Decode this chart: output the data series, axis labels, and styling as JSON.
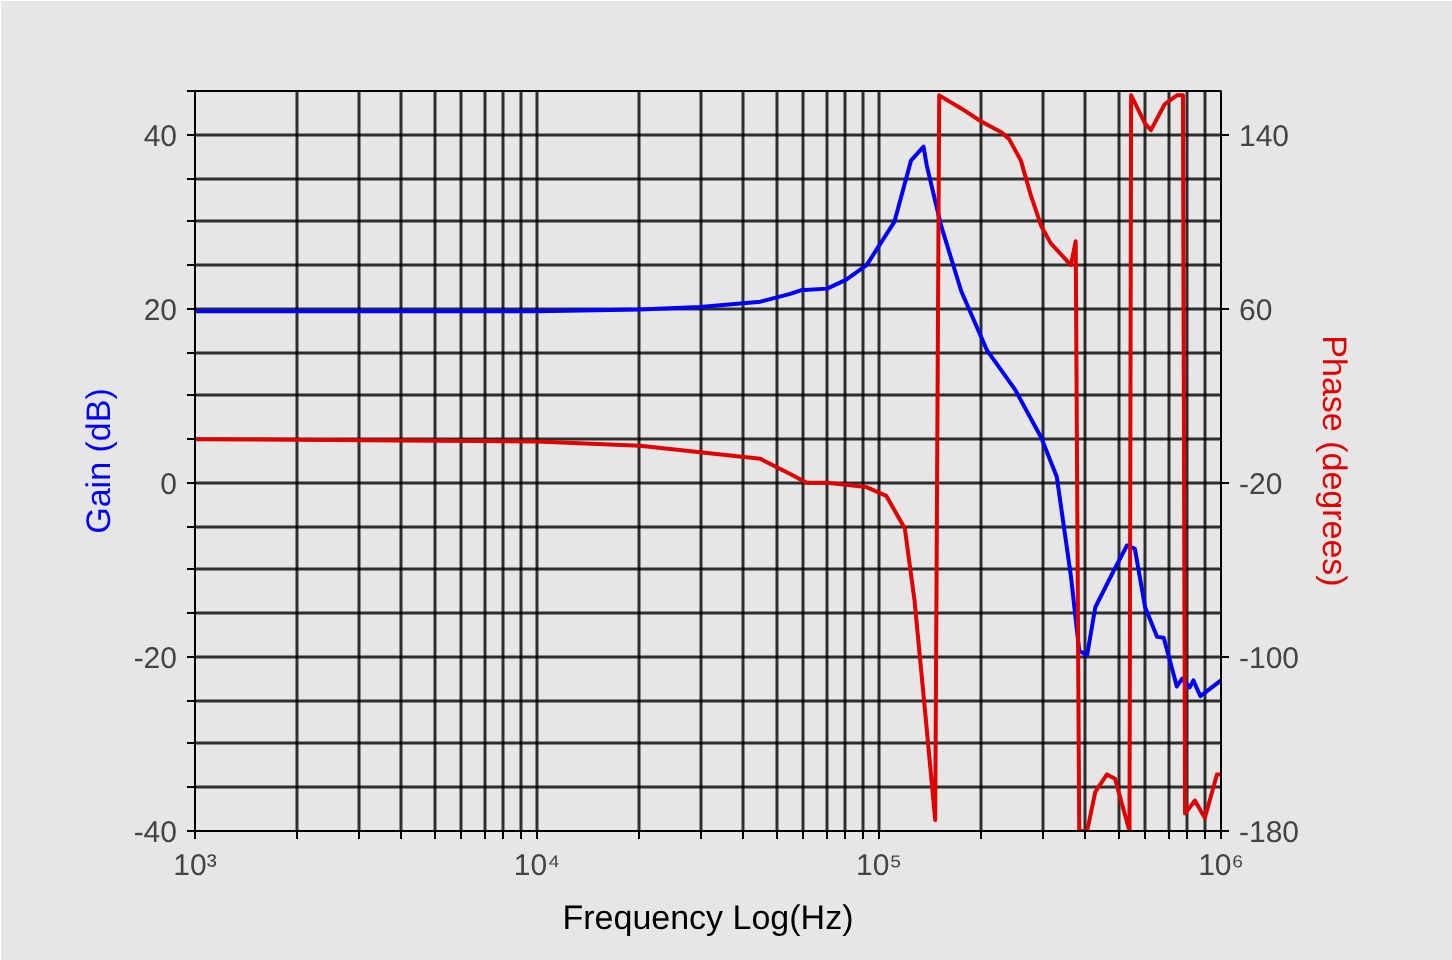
{
  "chart_data": {
    "type": "line",
    "xlabel": "Frequency Log(Hz)",
    "ylabel": "Gain (dB)",
    "y2label": "Phase (degrees)",
    "log": "x",
    "grid": true,
    "marker": "none",
    "line_style": "solid",
    "xlim": [
      1000,
      1000000
    ],
    "xticks": [
      {
        "value": 1000,
        "label": "10³"
      },
      {
        "value": 2000,
        "label": null
      },
      {
        "value": 3000,
        "label": null
      },
      {
        "value": 4000,
        "label": null
      },
      {
        "value": 5000,
        "label": null
      },
      {
        "value": 6000,
        "label": null
      },
      {
        "value": 7000,
        "label": null
      },
      {
        "value": 8000,
        "label": null
      },
      {
        "value": 9000,
        "label": null
      },
      {
        "value": 10000,
        "label": "10⁴"
      },
      {
        "value": 20000,
        "label": null
      },
      {
        "value": 30000,
        "label": null
      },
      {
        "value": 40000,
        "label": null
      },
      {
        "value": 50000,
        "label": null
      },
      {
        "value": 60000,
        "label": null
      },
      {
        "value": 70000,
        "label": null
      },
      {
        "value": 80000,
        "label": null
      },
      {
        "value": 90000,
        "label": null
      },
      {
        "value": 100000,
        "label": "10⁵"
      },
      {
        "value": 200000,
        "label": null
      },
      {
        "value": 300000,
        "label": null
      },
      {
        "value": 400000,
        "label": null
      },
      {
        "value": 500000,
        "label": null
      },
      {
        "value": 600000,
        "label": null
      },
      {
        "value": 700000,
        "label": null
      },
      {
        "value": 800000,
        "label": null
      },
      {
        "value": 900000,
        "label": null
      },
      {
        "value": 1000000,
        "label": "10⁶"
      }
    ],
    "ylim": [
      -40,
      45
    ],
    "yticks": [
      -40,
      {
        "value": -35,
        "label": null
      },
      {
        "value": -30,
        "label": null
      },
      {
        "value": -25,
        "label": null
      },
      -20,
      {
        "value": -15,
        "label": null
      },
      {
        "value": -10,
        "label": null
      },
      {
        "value": -5,
        "label": null
      },
      0,
      {
        "value": 5,
        "label": null
      },
      {
        "value": 10,
        "label": null
      },
      {
        "value": 15,
        "label": null
      },
      20,
      {
        "value": 25,
        "label": null
      },
      {
        "value": 30,
        "label": null
      },
      {
        "value": 35,
        "label": null
      },
      40,
      {
        "value": 45,
        "label": null
      }
    ],
    "y2lim": [
      -180,
      160
    ],
    "y2ticks": [
      -180,
      -100,
      -20,
      60,
      140
    ],
    "series": [
      {
        "color": "#0000ff",
        "x": [
          1000,
          10000,
          20000,
          30000,
          45000,
          55000,
          59000,
          70500,
          80000,
          92000,
          111000,
          124000,
          135000,
          138000,
          152000,
          174000,
          207000,
          250000,
          298000,
          331000,
          364000,
          385000,
          406000,
          429000,
          490000,
          531000,
          560000,
          600000,
          650000,
          680000,
          743000,
          770000,
          810000,
          830000,
          870000,
          1000000
        ],
        "values": [
          19.7,
          19.7,
          19.9,
          20.2,
          20.8,
          21.7,
          22.1,
          22.3,
          23.3,
          25,
          30,
          37,
          38.6,
          36.4,
          29.5,
          22,
          15.2,
          10.7,
          5.2,
          0.7,
          -10.7,
          -19.3,
          -19.8,
          -14.3,
          -9.8,
          -7.2,
          -7.6,
          -14.3,
          -17.7,
          -17.8,
          -23.4,
          -22.5,
          -23.5,
          -22.7,
          -24.5,
          -22.7
        ]
      },
      {
        "color": "#e00000",
        "axis": "y2",
        "x": [
          1000,
          10000,
          20000,
          30000,
          45000,
          55000,
          61500,
          70500,
          92000,
          105000,
          119000,
          127000,
          136000,
          146000,
          150000,
          174000,
          199000,
          228000,
          240000,
          260000,
          278000,
          298000,
          318000,
          364000,
          376000,
          385000,
          406000,
          429000,
          464000,
          490000,
          540000,
          546000,
          600000,
          624000,
          685000,
          743000,
          774000,
          785000,
          839000,
          897000,
          973000,
          1000000
        ],
        "values": [
          0,
          -1,
          -3,
          -6,
          -9,
          -16,
          -20,
          -20,
          -22,
          -26,
          -41,
          -74,
          -123,
          -175,
          158,
          152,
          146,
          141,
          138,
          128,
          112,
          98,
          90,
          80,
          91,
          -180,
          -180,
          -162,
          -154,
          -156,
          -180,
          158,
          145,
          142,
          154,
          158,
          158,
          -172,
          -166,
          -174,
          -154,
          -154
        ]
      }
    ]
  }
}
